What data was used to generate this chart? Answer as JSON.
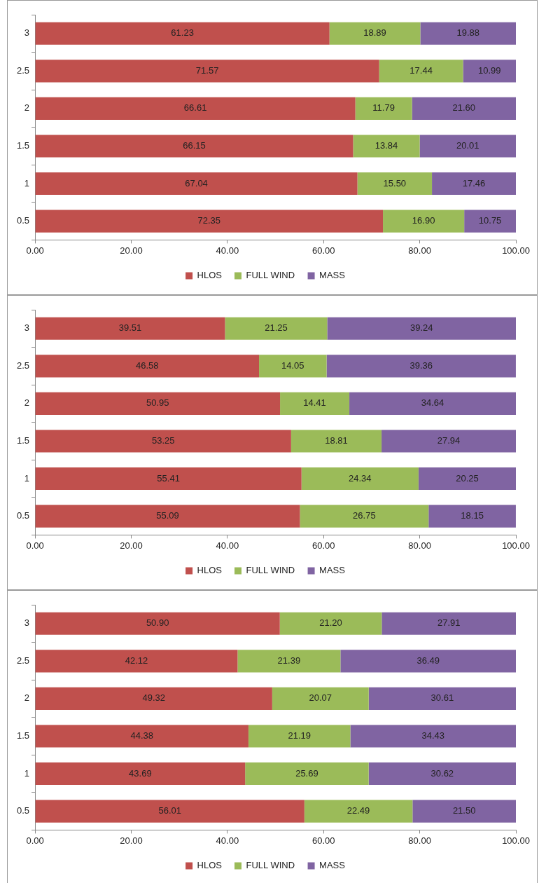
{
  "chart_data": [
    {
      "type": "bar",
      "orientation": "horizontal",
      "stacked": true,
      "categories": [
        "3",
        "2.5",
        "2",
        "1.5",
        "1",
        "0.5"
      ],
      "xlim": [
        0,
        100
      ],
      "xticks": [
        {
          "value": 0,
          "label": "0.00"
        },
        {
          "value": 20,
          "label": "20.00"
        },
        {
          "value": 40,
          "label": "40.00"
        },
        {
          "value": 60,
          "label": "60.00"
        },
        {
          "value": 80,
          "label": "80.00"
        },
        {
          "value": 100,
          "label": "100.00"
        }
      ],
      "grid": false,
      "legend": "bottom",
      "series": [
        {
          "name": "HLOS",
          "color": "#c0504d",
          "values": [
            61.23,
            71.57,
            66.61,
            66.15,
            67.04,
            72.35
          ],
          "value_labels": [
            "61.23",
            "71.57",
            "66.61",
            "66.15",
            "67.04",
            "72.35"
          ]
        },
        {
          "name": "FULL WIND",
          "color": "#9bbb59",
          "values": [
            18.89,
            17.44,
            11.79,
            13.84,
            15.5,
            16.9
          ],
          "value_labels": [
            "18.89",
            "17.44",
            "11.79",
            "13.84",
            "15.50",
            "16.90"
          ]
        },
        {
          "name": "MASS",
          "color": "#8064a2",
          "values": [
            19.88,
            10.99,
            21.6,
            20.01,
            17.46,
            10.75
          ],
          "value_labels": [
            "19.88",
            "10.99",
            "21.60",
            "20.01",
            "17.46",
            "10.75"
          ]
        }
      ]
    },
    {
      "type": "bar",
      "orientation": "horizontal",
      "stacked": true,
      "categories": [
        "3",
        "2.5",
        "2",
        "1.5",
        "1",
        "0.5"
      ],
      "xlim": [
        0,
        100
      ],
      "xticks": [
        {
          "value": 0,
          "label": "0.00"
        },
        {
          "value": 20,
          "label": "20.00"
        },
        {
          "value": 40,
          "label": "40.00"
        },
        {
          "value": 60,
          "label": "60.00"
        },
        {
          "value": 80,
          "label": "80.00"
        },
        {
          "value": 100,
          "label": "100.00"
        }
      ],
      "grid": false,
      "legend": "bottom",
      "series": [
        {
          "name": "HLOS",
          "color": "#c0504d",
          "values": [
            39.51,
            46.58,
            50.95,
            53.25,
            55.41,
            55.09
          ],
          "value_labels": [
            "39.51",
            "46.58",
            "50.95",
            "53.25",
            "55.41",
            "55.09"
          ]
        },
        {
          "name": "FULL WIND",
          "color": "#9bbb59",
          "values": [
            21.25,
            14.05,
            14.41,
            18.81,
            24.34,
            26.75
          ],
          "value_labels": [
            "21.25",
            "14.05",
            "14.41",
            "18.81",
            "24.34",
            "26.75"
          ]
        },
        {
          "name": "MASS",
          "color": "#8064a2",
          "values": [
            39.24,
            39.36,
            34.64,
            27.94,
            20.25,
            18.15
          ],
          "value_labels": [
            "39.24",
            "39.36",
            "34.64",
            "27.94",
            "20.25",
            "18.15"
          ]
        }
      ]
    },
    {
      "type": "bar",
      "orientation": "horizontal",
      "stacked": true,
      "categories": [
        "3",
        "2.5",
        "2",
        "1.5",
        "1",
        "0.5"
      ],
      "xlim": [
        0,
        100
      ],
      "xticks": [
        {
          "value": 0,
          "label": "0.00"
        },
        {
          "value": 20,
          "label": "20.00"
        },
        {
          "value": 40,
          "label": "40.00"
        },
        {
          "value": 60,
          "label": "60.00"
        },
        {
          "value": 80,
          "label": "80.00"
        },
        {
          "value": 100,
          "label": "100.00"
        }
      ],
      "grid": false,
      "legend": "bottom",
      "series": [
        {
          "name": "HLOS",
          "color": "#c0504d",
          "values": [
            50.9,
            42.12,
            49.32,
            44.38,
            43.69,
            56.01
          ],
          "value_labels": [
            "50.90",
            "42.12",
            "49.32",
            "44.38",
            "43.69",
            "56.01"
          ]
        },
        {
          "name": "FULL WIND",
          "color": "#9bbb59",
          "values": [
            21.2,
            21.39,
            20.07,
            21.19,
            25.69,
            22.49
          ],
          "value_labels": [
            "21.20",
            "21.39",
            "20.07",
            "21.19",
            "25.69",
            "22.49"
          ]
        },
        {
          "name": "MASS",
          "color": "#8064a2",
          "values": [
            27.91,
            36.49,
            30.61,
            34.43,
            30.62,
            21.5
          ],
          "value_labels": [
            "27.91",
            "36.49",
            "30.61",
            "34.43",
            "30.62",
            "21.50"
          ]
        }
      ]
    }
  ]
}
